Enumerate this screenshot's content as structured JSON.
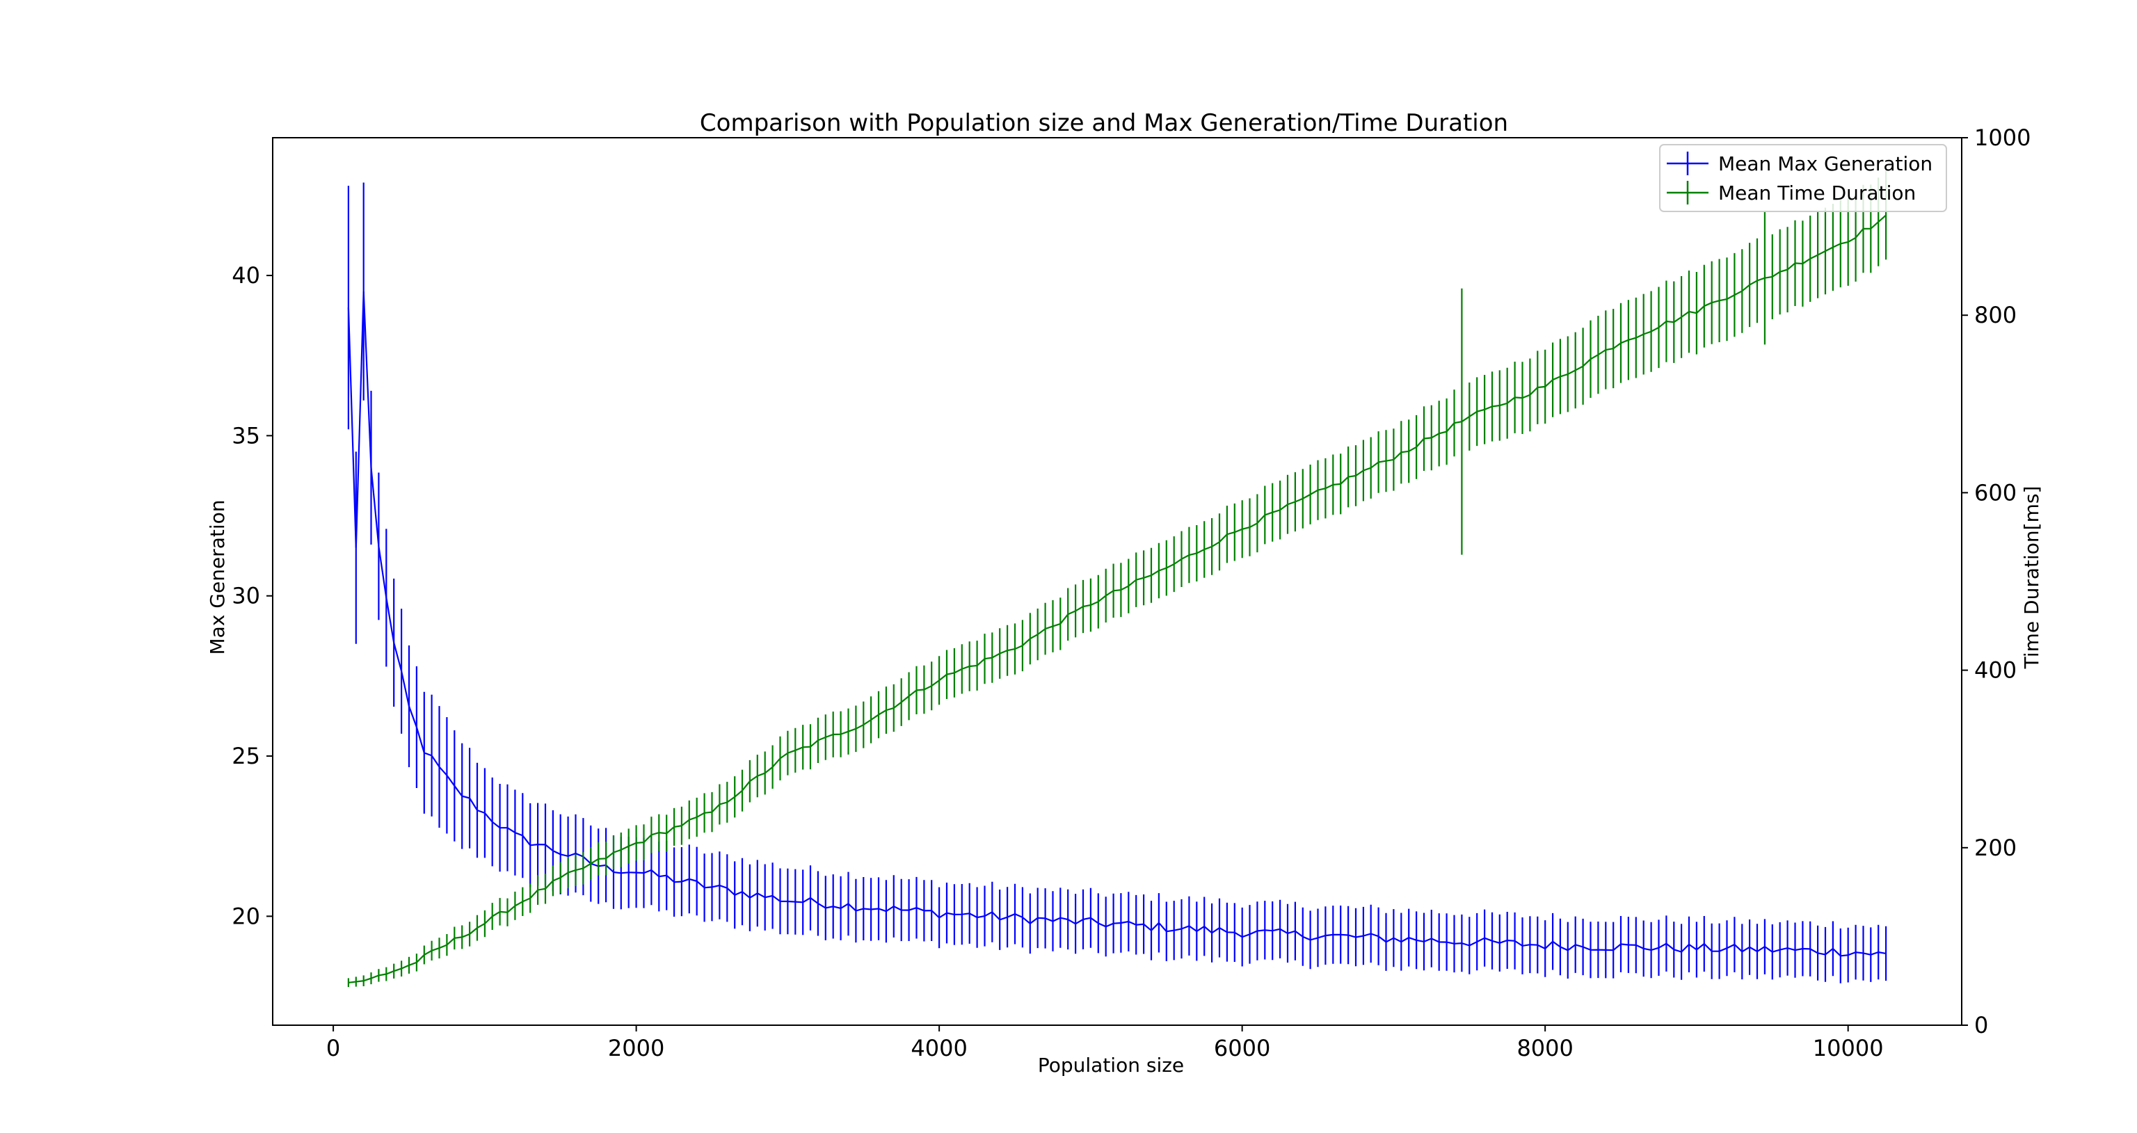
{
  "chart_data": {
    "type": "line",
    "title": "Comparison with Population size and Max Generation/Time Duration",
    "xlabel": "Population size",
    "ylabel_left": "Max Generation",
    "ylabel_right": "Time Duration[ms]",
    "xlim": [
      -400,
      10750
    ],
    "ylim_left": [
      16.6,
      44.3
    ],
    "ylim_right": [
      0,
      1000
    ],
    "x_ticks": [
      "0",
      "2000",
      "4000",
      "6000",
      "8000",
      "10000"
    ],
    "y_left_ticks": [
      "20",
      "25",
      "30",
      "35",
      "40"
    ],
    "y_right_ticks": [
      "0",
      "200",
      "400",
      "600",
      "800",
      "1000"
    ],
    "legend_position": "top-right",
    "grid": false,
    "x_start": 100,
    "x_step": 50,
    "x_end": 10250,
    "series": [
      {
        "name": "Mean Max Generation",
        "color": "#0000ff",
        "axis": "left",
        "key_points": [
          [
            100,
            39.0
          ],
          [
            150,
            31.5
          ],
          [
            200,
            39.5
          ],
          [
            250,
            34.0
          ],
          [
            300,
            31.5
          ],
          [
            400,
            28.5
          ],
          [
            500,
            26.5
          ],
          [
            600,
            25.2
          ],
          [
            700,
            24.6
          ],
          [
            800,
            24.0
          ],
          [
            1000,
            23.2
          ],
          [
            1200,
            22.5
          ],
          [
            1500,
            22.0
          ],
          [
            1800,
            21.5
          ],
          [
            2000,
            21.4
          ],
          [
            2500,
            20.9
          ],
          [
            3000,
            20.5
          ],
          [
            3500,
            20.3
          ],
          [
            4000,
            20.1
          ],
          [
            5000,
            19.8
          ],
          [
            6000,
            19.5
          ],
          [
            7000,
            19.3
          ],
          [
            8000,
            19.1
          ],
          [
            9000,
            19.0
          ],
          [
            10000,
            18.9
          ],
          [
            10250,
            18.8
          ]
        ],
        "error_key_points": [
          [
            100,
            3.8
          ],
          [
            150,
            3.0
          ],
          [
            200,
            3.4
          ],
          [
            250,
            2.4
          ],
          [
            300,
            2.3
          ],
          [
            400,
            2.0
          ],
          [
            500,
            1.9
          ],
          [
            700,
            1.9
          ],
          [
            1000,
            1.4
          ],
          [
            2000,
            1.1
          ],
          [
            4000,
            0.95
          ],
          [
            10250,
            0.85
          ]
        ],
        "jitter": 0.15
      },
      {
        "name": "Mean Time Duration",
        "color": "#008000",
        "axis": "right",
        "key_points": [
          [
            100,
            48
          ],
          [
            200,
            50
          ],
          [
            500,
            67
          ],
          [
            1000,
            115
          ],
          [
            1500,
            165
          ],
          [
            2000,
            205
          ],
          [
            2500,
            240
          ],
          [
            3000,
            305
          ],
          [
            3500,
            340
          ],
          [
            4000,
            390
          ],
          [
            4500,
            425
          ],
          [
            5000,
            475
          ],
          [
            5500,
            515
          ],
          [
            6000,
            560
          ],
          [
            6500,
            600
          ],
          [
            7000,
            640
          ],
          [
            7500,
            685
          ],
          [
            8000,
            720
          ],
          [
            8500,
            770
          ],
          [
            9000,
            805
          ],
          [
            9500,
            845
          ],
          [
            10000,
            885
          ],
          [
            10250,
            910
          ]
        ],
        "error_key_points": [
          [
            100,
            5
          ],
          [
            1000,
            15
          ],
          [
            2000,
            20
          ],
          [
            3000,
            25
          ],
          [
            5000,
            30
          ],
          [
            7000,
            35
          ],
          [
            8500,
            45
          ],
          [
            10250,
            50
          ]
        ],
        "jitter": 3,
        "outliers": [
          [
            7450,
            150
          ],
          [
            9450,
            75
          ]
        ]
      }
    ]
  }
}
